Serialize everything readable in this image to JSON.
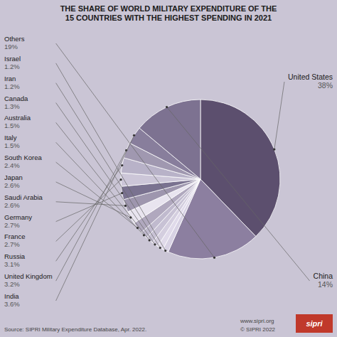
{
  "chart_data": {
    "type": "pie",
    "title": "THE SHARE OF WORLD MILITARY EXPENDITURE OF THE\n15 COUNTRIES WITH THE HIGHEST SPENDING IN 2021",
    "categories": [
      "United States",
      "Others",
      "Israel",
      "Iran",
      "Canada",
      "Australia",
      "Italy",
      "South Korea",
      "Japan",
      "Saudi Arabia",
      "Germany",
      "France",
      "Russia",
      "United Kingdom",
      "India",
      "China"
    ],
    "values": [
      38,
      19,
      1.2,
      1.2,
      1.3,
      1.5,
      1.5,
      2.4,
      2.6,
      2.6,
      2.7,
      2.7,
      3.1,
      3.2,
      3.6,
      14
    ],
    "value_labels": [
      "38%",
      "19%",
      "1.2%",
      "1.2%",
      "1.3%",
      "1.5%",
      "1.5%",
      "2.4%",
      "2.6%",
      "2.6%",
      "2.7%",
      "2.7%",
      "3.1%",
      "3.2%",
      "3.6%",
      "14%"
    ],
    "colors": [
      "#5c4f6e",
      "#8c7fa0",
      "#d8d2e4",
      "#e0daea",
      "#d4cedf",
      "#c8c2d5",
      "#c0bace",
      "#b0a8be",
      "#e8e4ef",
      "#9e96ae",
      "#7a7290",
      "#ccc6d8",
      "#b8b2c8",
      "#a098b0",
      "#887e9c",
      "#7d7291"
    ],
    "data_labels": true,
    "annotations": [
      "Source: SIPRI Military Expenditure Database, Apr. 2022.",
      "www.sipri.org",
      "© SIPRI 2022",
      "sipri"
    ]
  }
}
